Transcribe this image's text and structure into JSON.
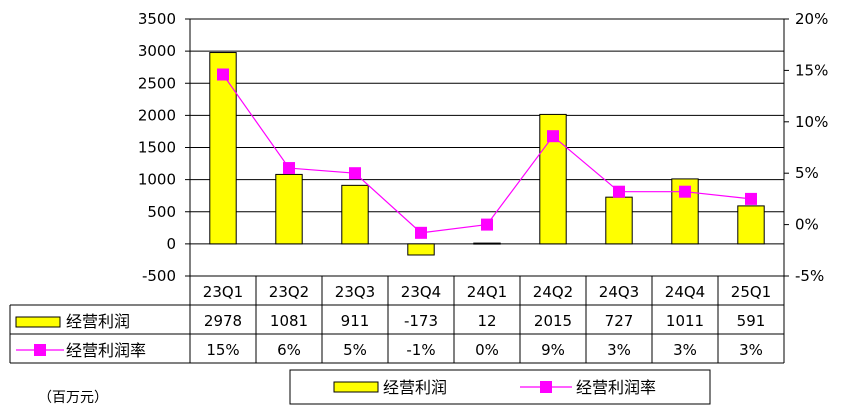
{
  "chart_data": {
    "type": "bar",
    "categories": [
      "23Q1",
      "23Q2",
      "23Q3",
      "23Q4",
      "24Q1",
      "24Q2",
      "24Q3",
      "24Q4",
      "25Q1"
    ],
    "series": [
      {
        "name": "经营利润",
        "kind": "bar",
        "axis": "left",
        "color": "#ffff00",
        "values": [
          2978,
          1081,
          911,
          -173,
          12,
          2015,
          727,
          1011,
          591
        ],
        "labels": [
          "2978",
          "1081",
          "911",
          "-173",
          "12",
          "2015",
          "727",
          "1011",
          "591"
        ]
      },
      {
        "name": "经营利润率",
        "kind": "line",
        "axis": "right",
        "color": "#ff00ff",
        "values": [
          14.6,
          5.5,
          5.0,
          -0.8,
          0.0,
          8.6,
          3.2,
          3.2,
          2.5
        ],
        "labels": [
          "15%",
          "6%",
          "5%",
          "-1%",
          "0%",
          "9%",
          "3%",
          "3%",
          "3%"
        ]
      }
    ],
    "y_left": {
      "ylim": [
        -500,
        3500
      ],
      "ticks": [
        "-500",
        "0",
        "500",
        "1000",
        "1500",
        "2000",
        "2500",
        "3000",
        "3500"
      ]
    },
    "y_right": {
      "ylim": [
        -5,
        20
      ],
      "ticks": [
        "-5%",
        "0%",
        "5%",
        "10%",
        "15%",
        "20%"
      ]
    },
    "unit_label": "（百万元）",
    "grid": true,
    "legend_position": "bottom"
  }
}
